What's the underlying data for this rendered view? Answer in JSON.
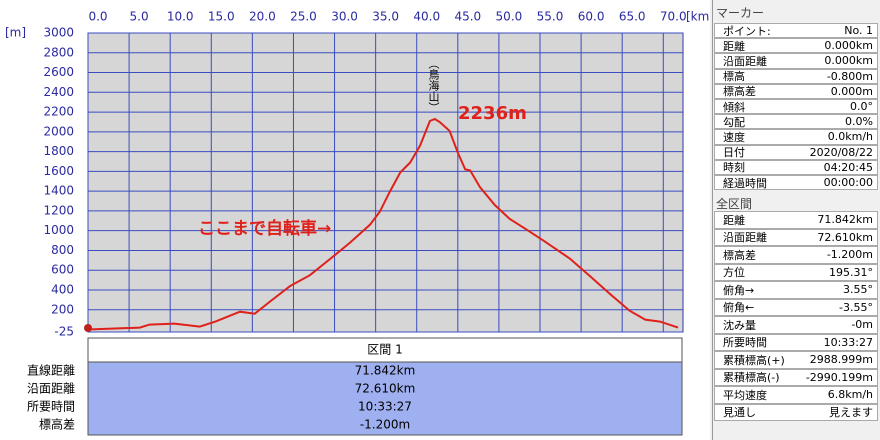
{
  "chart_data": {
    "type": "line",
    "x_unit": "[km]",
    "y_unit": "[m]",
    "xlim": [
      0,
      72.4
    ],
    "xticks": [
      {
        "value": 0,
        "label": "0.0"
      },
      {
        "value": 5,
        "label": "5.0"
      },
      {
        "value": 10,
        "label": "10.0"
      },
      {
        "value": 15,
        "label": "15.0"
      },
      {
        "value": 20,
        "label": "20.0"
      },
      {
        "value": 25,
        "label": "25.0"
      },
      {
        "value": 30,
        "label": "30.0"
      },
      {
        "value": 35,
        "label": "35.0"
      },
      {
        "value": 40,
        "label": "40.0"
      },
      {
        "value": 45,
        "label": "45.0"
      },
      {
        "value": 50,
        "label": "50.0"
      },
      {
        "value": 55,
        "label": "55.0"
      },
      {
        "value": 60,
        "label": "60.0"
      },
      {
        "value": 65,
        "label": "65.0"
      },
      {
        "value": 70,
        "label": "70.0"
      }
    ],
    "ylim": [
      -25,
      3000
    ],
    "yticks": [
      -25,
      200,
      400,
      600,
      800,
      1000,
      1200,
      1400,
      1600,
      1800,
      2000,
      2200,
      2400,
      2600,
      2800,
      3000
    ],
    "grid": true,
    "x": [
      0,
      6.3,
      7.5,
      10.5,
      13.6,
      15.5,
      18.5,
      20.3,
      22.1,
      24.6,
      27,
      29.4,
      31.9,
      34.3,
      35.5,
      36.7,
      38,
      39.2,
      40.4,
      41.6,
      42.2,
      42.8,
      44,
      45,
      45.9,
      46.5,
      47.7,
      49.5,
      51.3,
      53.2,
      55.6,
      58.6,
      61.1,
      63.5,
      65.9,
      67.8,
      69.6,
      71.8
    ],
    "series": [
      {
        "color": "#e0201a",
        "values": [
          0,
          20,
          50,
          60,
          30,
          80,
          180,
          160,
          280,
          440,
          550,
          710,
          880,
          1060,
          1190,
          1390,
          1590,
          1690,
          1860,
          2110,
          2130,
          2100,
          2010,
          1790,
          1620,
          1610,
          1440,
          1260,
          1120,
          1020,
          890,
          720,
          540,
          360,
          190,
          100,
          80,
          20
        ]
      }
    ],
    "annotations": [
      "（鳥海山）",
      "2236m",
      "ここまで自転車→"
    ]
  },
  "section_table": {
    "header": "区間 1",
    "rows": [
      [
        "直線距離",
        "71.842km"
      ],
      [
        "沿面距離",
        "72.610km"
      ],
      [
        "所要時間",
        "10:33:27"
      ],
      [
        "標高差",
        "-1.200m"
      ]
    ]
  },
  "marker_panel": {
    "title": "マーカー",
    "rows": [
      [
        "ポイント:",
        "No. 1"
      ],
      [
        "距離",
        "0.000km"
      ],
      [
        "沿面距離",
        "0.000km"
      ],
      [
        "標高",
        "-0.800m"
      ],
      [
        "標高差",
        "0.000m"
      ],
      [
        "傾斜",
        "0.0°"
      ],
      [
        "勾配",
        "0.0%"
      ],
      [
        "速度",
        "0.0km/h"
      ],
      [
        "日付",
        "2020/08/22"
      ],
      [
        "時刻",
        "04:20:45"
      ],
      [
        "経過時間",
        "00:00:00"
      ]
    ]
  },
  "total_panel": {
    "title": "全区間",
    "rows": [
      [
        "距離",
        "71.842km"
      ],
      [
        "沿面距離",
        "72.610km"
      ],
      [
        "標高差",
        "-1.200m"
      ],
      [
        "方位",
        "195.31°"
      ],
      [
        "俯角→",
        "3.55°"
      ],
      [
        "俯角←",
        "-3.55°"
      ],
      [
        "沈み量",
        "-0m"
      ],
      [
        "所要時間",
        "10:33:27"
      ],
      [
        "累積標高(+)",
        "2988.999m"
      ],
      [
        "累積標高(-)",
        "-2990.199m"
      ],
      [
        "平均速度",
        "6.8km/h"
      ],
      [
        "見通し",
        "見えます"
      ]
    ]
  }
}
